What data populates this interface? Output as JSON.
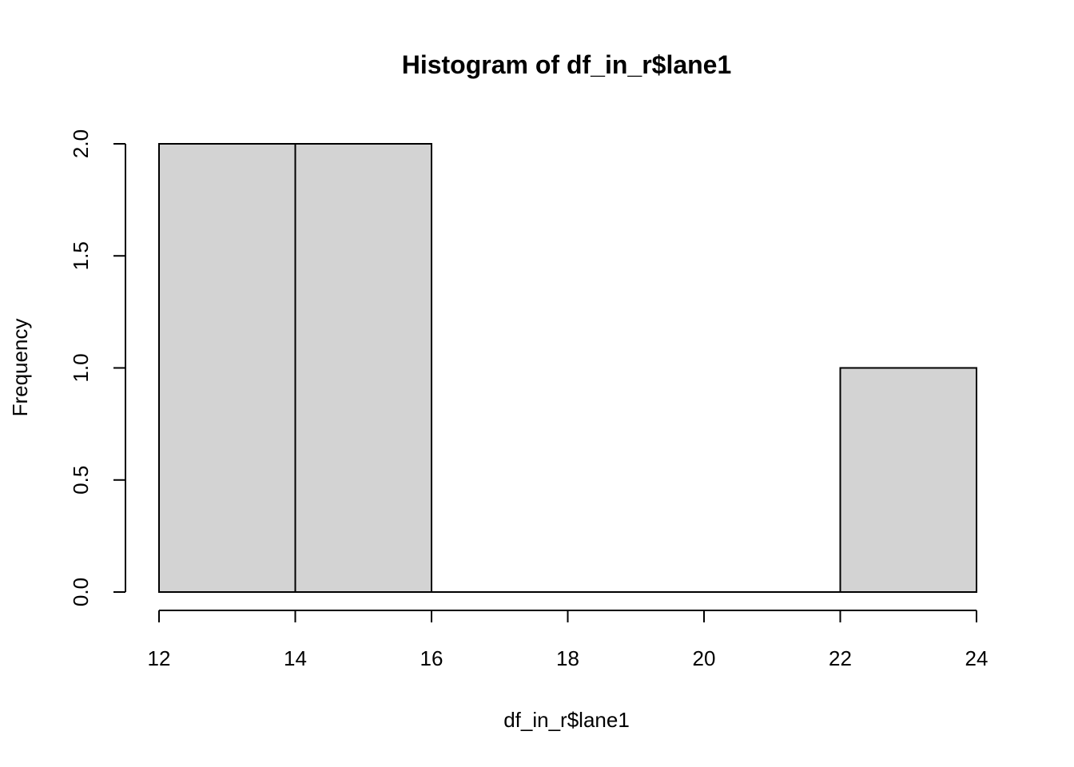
{
  "chart_data": {
    "type": "bar",
    "title": "Histogram of df_in_r$lane1",
    "xlabel": "df_in_r$lane1",
    "ylabel": "Frequency",
    "bins": [
      {
        "from": 12,
        "to": 14,
        "count": 2
      },
      {
        "from": 14,
        "to": 16,
        "count": 2
      },
      {
        "from": 16,
        "to": 18,
        "count": 0
      },
      {
        "from": 18,
        "to": 20,
        "count": 0
      },
      {
        "from": 20,
        "to": 22,
        "count": 0
      },
      {
        "from": 22,
        "to": 24,
        "count": 1
      }
    ],
    "xlim": [
      12,
      24
    ],
    "ylim": [
      0,
      2
    ],
    "x_ticks": [
      12,
      14,
      16,
      18,
      20,
      22,
      24
    ],
    "x_tick_labels": [
      "12",
      "14",
      "16",
      "18",
      "20",
      "22",
      "24"
    ],
    "y_ticks": [
      0,
      0.5,
      1,
      1.5,
      2
    ],
    "y_tick_labels": [
      "0.0",
      "0.5",
      "1.0",
      "1.5",
      "2.0"
    ],
    "grid": false,
    "colors": {
      "bar_fill": "#d3d3d3",
      "bar_stroke": "#000000",
      "background": "#ffffff"
    }
  }
}
